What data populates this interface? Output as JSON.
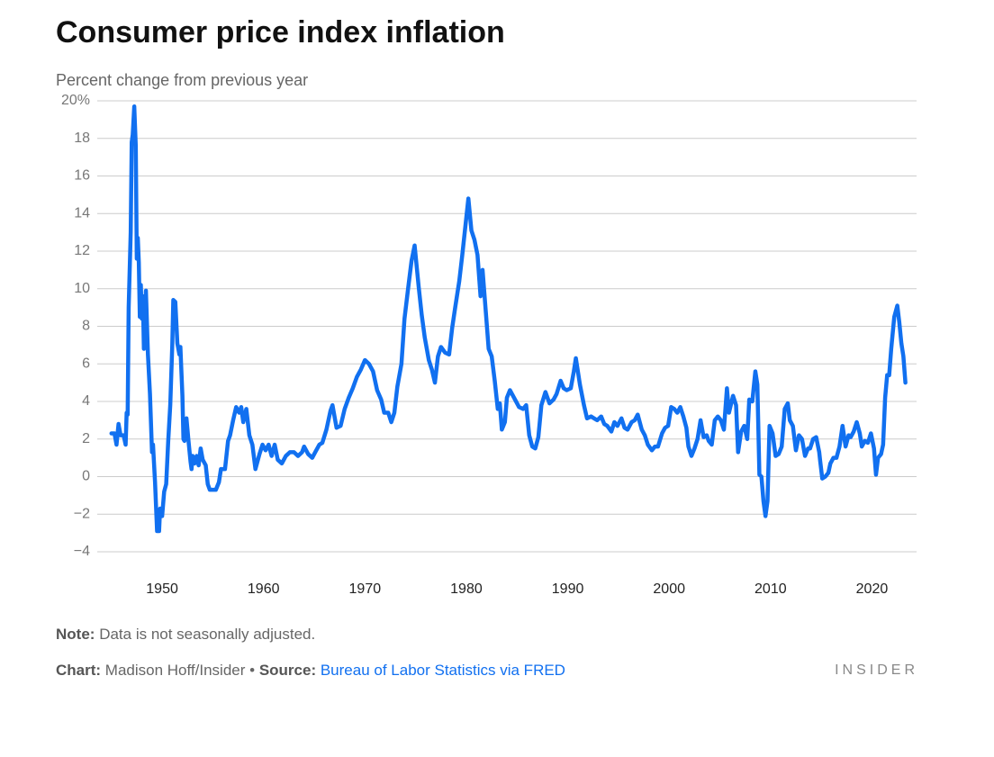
{
  "chart_data": {
    "type": "line",
    "title": "Consumer price index inflation",
    "y_axis_label": "Percent change from previous year",
    "note_label": "Note:",
    "note": "Data is not seasonally adjusted.",
    "credit_label": "Chart:",
    "credit": "Madison Hoff/Insider •",
    "source_label": "Source:",
    "source": "Bureau of Labor Statistics via FRED",
    "brand": "INSIDER",
    "xlim": [
      1943.6,
      2024.4
    ],
    "xticks": [
      1950,
      1960,
      1970,
      1980,
      1990,
      2000,
      2010,
      2020
    ],
    "ylim": [
      -4,
      20
    ],
    "yticks": [
      {
        "value": -4,
        "label": "−4"
      },
      {
        "value": -2,
        "label": "−2"
      },
      0,
      2,
      4,
      6,
      8,
      10,
      12,
      14,
      16,
      18,
      {
        "value": 20,
        "label": "20%"
      }
    ],
    "grid": true,
    "series": [
      {
        "color": "#1170f0",
        "x": [
          1945.0,
          1945.3,
          1945.5,
          1945.7,
          1945.9,
          1946.2,
          1946.4,
          1946.5,
          1946.6,
          1946.7,
          1946.9,
          1947.0,
          1947.1,
          1947.25,
          1947.4,
          1947.5,
          1947.6,
          1947.7,
          1947.8,
          1947.9,
          1948.0,
          1948.1,
          1948.2,
          1948.4,
          1948.6,
          1948.8,
          1949.0,
          1949.1,
          1949.3,
          1949.5,
          1949.7,
          1949.8,
          1950.0,
          1950.2,
          1950.4,
          1950.6,
          1950.8,
          1951.0,
          1951.1,
          1951.3,
          1951.5,
          1951.7,
          1951.8,
          1952.0,
          1952.1,
          1952.2,
          1952.4,
          1952.6,
          1952.8,
          1952.9,
          1953.0,
          1953.2,
          1953.4,
          1953.6,
          1953.8,
          1954.0,
          1954.3,
          1954.5,
          1954.7,
          1955.0,
          1955.3,
          1955.6,
          1955.8,
          1956.2,
          1956.5,
          1956.7,
          1957.0,
          1957.3,
          1957.6,
          1957.8,
          1958.0,
          1958.3,
          1958.6,
          1958.9,
          1959.2,
          1959.6,
          1959.9,
          1960.2,
          1960.5,
          1960.8,
          1961.1,
          1961.4,
          1961.8,
          1962.2,
          1962.6,
          1963.0,
          1963.4,
          1963.8,
          1964.0,
          1964.4,
          1964.8,
          1965.1,
          1965.5,
          1965.8,
          1966.2,
          1966.6,
          1966.8,
          1967.2,
          1967.6,
          1968.0,
          1968.4,
          1968.8,
          1969.2,
          1969.6,
          1970.0,
          1970.4,
          1970.8,
          1971.2,
          1971.6,
          1971.9,
          1972.3,
          1972.6,
          1972.9,
          1973.2,
          1973.6,
          1973.9,
          1974.3,
          1974.6,
          1974.9,
          1975.3,
          1975.6,
          1975.9,
          1976.3,
          1976.6,
          1976.9,
          1977.2,
          1977.5,
          1977.9,
          1978.3,
          1978.6,
          1978.9,
          1979.3,
          1979.6,
          1979.9,
          1980.2,
          1980.5,
          1980.8,
          1981.1,
          1981.4,
          1981.6,
          1981.9,
          1982.2,
          1982.5,
          1982.8,
          1983.1,
          1983.3,
          1983.5,
          1983.8,
          1984.0,
          1984.3,
          1984.6,
          1984.9,
          1985.2,
          1985.6,
          1985.9,
          1986.2,
          1986.5,
          1986.8,
          1987.1,
          1987.4,
          1987.8,
          1988.2,
          1988.6,
          1988.9,
          1989.3,
          1989.6,
          1989.9,
          1990.3,
          1990.6,
          1990.8,
          1991.2,
          1991.6,
          1991.9,
          1992.3,
          1992.6,
          1992.9,
          1993.3,
          1993.6,
          1993.9,
          1994.3,
          1994.6,
          1994.9,
          1995.3,
          1995.6,
          1995.9,
          1996.3,
          1996.6,
          1996.9,
          1997.3,
          1997.6,
          1997.9,
          1998.3,
          1998.6,
          1998.9,
          1999.3,
          1999.6,
          1999.9,
          2000.2,
          2000.5,
          2000.8,
          2001.1,
          2001.4,
          2001.7,
          2001.9,
          2002.2,
          2002.5,
          2002.8,
          2003.1,
          2003.4,
          2003.7,
          2003.9,
          2004.2,
          2004.5,
          2004.8,
          2005.1,
          2005.4,
          2005.7,
          2005.9,
          2006.3,
          2006.6,
          2006.8,
          2007.1,
          2007.4,
          2007.7,
          2007.9,
          2008.2,
          2008.5,
          2008.7,
          2008.9,
          2009.1,
          2009.3,
          2009.5,
          2009.7,
          2009.9,
          2010.2,
          2010.5,
          2010.8,
          2011.1,
          2011.4,
          2011.7,
          2011.9,
          2012.2,
          2012.5,
          2012.8,
          2013.1,
          2013.4,
          2013.7,
          2013.9,
          2014.2,
          2014.5,
          2014.8,
          2014.9,
          2015.1,
          2015.4,
          2015.7,
          2015.9,
          2016.2,
          2016.5,
          2016.8,
          2017.1,
          2017.4,
          2017.7,
          2017.9,
          2018.2,
          2018.5,
          2018.8,
          2019.0,
          2019.3,
          2019.6,
          2019.9,
          2020.2,
          2020.4,
          2020.6,
          2020.9,
          2021.1,
          2021.3,
          2021.5,
          2021.7,
          2021.9,
          2022.2,
          2022.5,
          2022.7,
          2022.9,
          2023.1,
          2023.3
        ],
        "values": [
          2.3,
          2.3,
          1.7,
          2.8,
          2.2,
          2.2,
          1.7,
          3.4,
          3.3,
          9,
          13,
          17.8,
          18.2,
          19.7,
          17.6,
          11.6,
          12.7,
          11.4,
          8.5,
          10.2,
          8.4,
          9.6,
          6.8,
          9.9,
          6.5,
          4.4,
          1.3,
          1.7,
          -0.3,
          -2.9,
          -2.9,
          -1.7,
          -2.1,
          -0.8,
          -0.4,
          1.9,
          3.8,
          7,
          9.4,
          9.3,
          7.1,
          6.5,
          6.9,
          4.3,
          2,
          1.9,
          3.1,
          1.9,
          0.8,
          0.4,
          1.1,
          0.7,
          1.1,
          0.6,
          1.5,
          0.9,
          0.6,
          -0.4,
          -0.7,
          -0.7,
          -0.7,
          -0.3,
          0.4,
          0.4,
          1.9,
          2.2,
          3,
          3.7,
          3.4,
          3.7,
          2.9,
          3.6,
          2.2,
          1.7,
          0.4,
          1.2,
          1.7,
          1.4,
          1.7,
          1.1,
          1.7,
          0.9,
          0.7,
          1.1,
          1.3,
          1.3,
          1.1,
          1.3,
          1.6,
          1.2,
          1.0,
          1.3,
          1.7,
          1.8,
          2.5,
          3.5,
          3.8,
          2.6,
          2.7,
          3.6,
          4.2,
          4.7,
          5.3,
          5.7,
          6.2,
          6.0,
          5.6,
          4.6,
          4.1,
          3.4,
          3.4,
          2.9,
          3.4,
          4.8,
          6.0,
          8.4,
          10.2,
          11.5,
          12.3,
          10.1,
          8.6,
          7.4,
          6.2,
          5.7,
          5.0,
          6.4,
          6.9,
          6.6,
          6.5,
          7.9,
          9.0,
          10.4,
          11.8,
          13.3,
          14.8,
          13.1,
          12.6,
          11.8,
          9.6,
          11.0,
          8.9,
          6.8,
          6.4,
          5.1,
          3.6,
          3.9,
          2.5,
          2.9,
          4.2,
          4.6,
          4.3,
          4.0,
          3.7,
          3.6,
          3.8,
          2.2,
          1.6,
          1.5,
          2.1,
          3.8,
          4.5,
          3.9,
          4.1,
          4.4,
          5.1,
          4.7,
          4.6,
          4.7,
          5.6,
          6.3,
          4.9,
          3.8,
          3.1,
          3.2,
          3.1,
          3.0,
          3.2,
          2.8,
          2.7,
          2.4,
          2.9,
          2.7,
          3.1,
          2.6,
          2.5,
          2.9,
          3.0,
          3.3,
          2.5,
          2.2,
          1.7,
          1.4,
          1.6,
          1.6,
          2.3,
          2.6,
          2.7,
          3.7,
          3.6,
          3.4,
          3.7,
          3.2,
          2.6,
          1.6,
          1.1,
          1.5,
          2.0,
          3.0,
          2.1,
          2.2,
          1.9,
          1.7,
          3.0,
          3.2,
          3.0,
          2.5,
          4.7,
          3.4,
          4.3,
          3.8,
          1.3,
          2.4,
          2.7,
          2.0,
          4.1,
          4.0,
          5.6,
          4.9,
          0.1,
          0.0,
          -1.3,
          -2.1,
          -1.3,
          2.7,
          2.3,
          1.1,
          1.2,
          1.6,
          3.6,
          3.9,
          3.0,
          2.7,
          1.4,
          2.2,
          2.0,
          1.1,
          1.5,
          1.5,
          2.0,
          2.1,
          1.3,
          0.8,
          -0.1,
          0.0,
          0.2,
          0.7,
          1.0,
          1.0,
          1.6,
          2.7,
          1.6,
          2.2,
          2.1,
          2.4,
          2.9,
          2.3,
          1.6,
          1.9,
          1.8,
          2.3,
          1.5,
          0.1,
          1.0,
          1.2,
          1.7,
          4.2,
          5.4,
          5.4,
          6.8,
          8.5,
          9.1,
          8.2,
          7.1,
          6.4,
          5.0
        ]
      }
    ]
  }
}
